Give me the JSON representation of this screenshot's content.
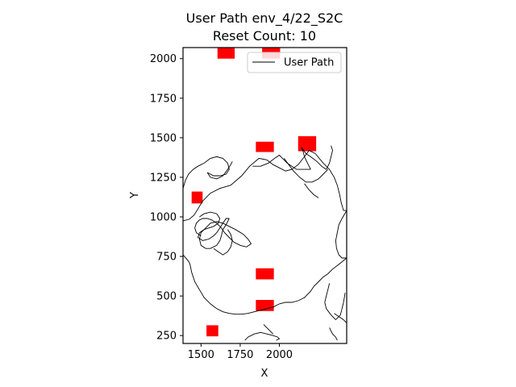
{
  "title": "User Path env_4/22_S2C",
  "subtitle": "Reset Count: 10",
  "chart_data": {
    "type": "line",
    "xlabel": "X",
    "ylabel": "Y",
    "xlim": [
      1385,
      2430
    ],
    "ylim": [
      200,
      2070
    ],
    "xticks": [
      1500,
      1750,
      2000
    ],
    "yticks": [
      250,
      500,
      750,
      1000,
      1250,
      1500,
      1750,
      2000
    ],
    "legend": {
      "position": "top-right",
      "entries": [
        "User Path"
      ]
    },
    "grid": false,
    "series": [
      {
        "name": "User Path",
        "color": "#000000",
        "segments": [
          [
            [
              1385,
              975
            ],
            [
              1425,
              985
            ],
            [
              1455,
              1010
            ],
            [
              1480,
              1050
            ],
            [
              1510,
              1100
            ],
            [
              1560,
              1150
            ],
            [
              1620,
              1180
            ],
            [
              1690,
              1200
            ],
            [
              1760,
              1260
            ],
            [
              1810,
              1320
            ],
            [
              1870,
              1370
            ],
            [
              1920,
              1360
            ],
            [
              1960,
              1330
            ],
            [
              2000,
              1310
            ],
            [
              2040,
              1290
            ],
            [
              2080,
              1300
            ],
            [
              2120,
              1330
            ],
            [
              2160,
              1380
            ],
            [
              2190,
              1420
            ],
            [
              2230,
              1400
            ]
          ],
          [
            [
              2230,
              1400
            ],
            [
              2280,
              1340
            ],
            [
              2320,
              1300
            ],
            [
              2350,
              1250
            ],
            [
              2370,
              1200
            ],
            [
              2385,
              1140
            ],
            [
              2395,
              1090
            ],
            [
              2410,
              1040
            ],
            [
              2430,
              1040
            ]
          ],
          [
            [
              2430,
              1040
            ],
            [
              2400,
              990
            ],
            [
              2380,
              950
            ],
            [
              2370,
              900
            ],
            [
              2360,
              850
            ],
            [
              2365,
              800
            ],
            [
              2380,
              760
            ],
            [
              2400,
              740
            ],
            [
              2430,
              740
            ]
          ],
          [
            [
              2430,
              740
            ],
            [
              2380,
              700
            ],
            [
              2340,
              670
            ],
            [
              2310,
              640
            ],
            [
              2280,
              620
            ],
            [
              2250,
              590
            ],
            [
              2220,
              560
            ],
            [
              2200,
              530
            ],
            [
              2180,
              510
            ],
            [
              2160,
              490
            ],
            [
              2120,
              470
            ],
            [
              2080,
              460
            ],
            [
              2040,
              460
            ],
            [
              2000,
              450
            ],
            [
              1960,
              430
            ],
            [
              1920,
              420
            ],
            [
              1880,
              410
            ],
            [
              1840,
              400
            ],
            [
              1800,
              390
            ],
            [
              1760,
              385
            ],
            [
              1720,
              385
            ],
            [
              1680,
              390
            ]
          ],
          [
            [
              1680,
              390
            ],
            [
              1640,
              400
            ],
            [
              1600,
              420
            ],
            [
              1560,
              450
            ],
            [
              1520,
              490
            ],
            [
              1490,
              540
            ],
            [
              1460,
              590
            ],
            [
              1440,
              650
            ],
            [
              1430,
              700
            ],
            [
              1420,
              720
            ],
            [
              1385,
              760
            ]
          ],
          [
            [
              1385,
              1180
            ],
            [
              1400,
              1230
            ],
            [
              1420,
              1270
            ],
            [
              1450,
              1300
            ],
            [
              1480,
              1320
            ],
            [
              1520,
              1340
            ],
            [
              1560,
              1370
            ],
            [
              1600,
              1380
            ],
            [
              1640,
              1370
            ],
            [
              1670,
              1340
            ],
            [
              1680,
              1300
            ],
            [
              1660,
              1270
            ],
            [
              1620,
              1260
            ],
            [
              1580,
              1260
            ],
            [
              1540,
              1280
            ]
          ],
          [
            [
              1540,
              1280
            ],
            [
              1560,
              1250
            ],
            [
              1600,
              1240
            ],
            [
              1640,
              1260
            ],
            [
              1670,
              1300
            ],
            [
              1690,
              1330
            ],
            [
              1700,
              1350
            ]
          ],
          [
            [
              1490,
              1000
            ],
            [
              1520,
              1020
            ],
            [
              1560,
              1030
            ],
            [
              1600,
              1020
            ],
            [
              1620,
              990
            ],
            [
              1610,
              960
            ],
            [
              1580,
              940
            ],
            [
              1550,
              930
            ],
            [
              1520,
              920
            ],
            [
              1490,
              900
            ],
            [
              1480,
              870
            ],
            [
              1510,
              850
            ],
            [
              1550,
              860
            ],
            [
              1580,
              880
            ],
            [
              1600,
              900
            ],
            [
              1620,
              930
            ],
            [
              1640,
              960
            ],
            [
              1660,
              990
            ],
            [
              1680,
              990
            ]
          ],
          [
            [
              1680,
              990
            ],
            [
              1660,
              950
            ],
            [
              1640,
              920
            ],
            [
              1630,
              880
            ],
            [
              1620,
              850
            ],
            [
              1600,
              820
            ],
            [
              1560,
              800
            ],
            [
              1530,
              800
            ],
            [
              1500,
              820
            ],
            [
              1490,
              860
            ],
            [
              1500,
              900
            ],
            [
              1530,
              930
            ],
            [
              1560,
              960
            ],
            [
              1600,
              970
            ],
            [
              1640,
              960
            ],
            [
              1680,
              940
            ],
            [
              1720,
              920
            ],
            [
              1770,
              890
            ],
            [
              1800,
              860
            ],
            [
              1820,
              830
            ],
            [
              1790,
              810
            ],
            [
              1750,
              820
            ],
            [
              1710,
              840
            ],
            [
              1680,
              870
            ],
            [
              1650,
              900
            ],
            [
              1630,
              930
            ]
          ],
          [
            [
              1630,
              930
            ],
            [
              1600,
              960
            ],
            [
              1570,
              980
            ],
            [
              1540,
              990
            ],
            [
              1510,
              990
            ],
            [
              1490,
              980
            ],
            [
              1470,
              960
            ],
            [
              1460,
              930
            ],
            [
              1470,
              900
            ],
            [
              1500,
              880
            ]
          ],
          [
            [
              1580,
              800
            ],
            [
              1610,
              780
            ],
            [
              1640,
              760
            ],
            [
              1670,
              780
            ],
            [
              1690,
              810
            ],
            [
              1700,
              850
            ],
            [
              1690,
              890
            ],
            [
              1670,
              920
            ]
          ],
          [
            [
              1830,
              1320
            ],
            [
              1880,
              1320
            ],
            [
              1930,
              1340
            ],
            [
              1970,
              1370
            ],
            [
              2000,
              1390
            ],
            [
              2020,
              1370
            ],
            [
              2050,
              1340
            ],
            [
              2080,
              1320
            ],
            [
              2110,
              1300
            ],
            [
              2150,
              1300
            ],
            [
              2200,
              1300
            ]
          ],
          [
            [
              2200,
              1300
            ],
            [
              2180,
              1340
            ],
            [
              2160,
              1380
            ],
            [
              2150,
              1420
            ],
            [
              2140,
              1440
            ],
            [
              2170,
              1400
            ],
            [
              2200,
              1380
            ],
            [
              2240,
              1350
            ],
            [
              2270,
              1320
            ],
            [
              2300,
              1300
            ]
          ],
          [
            [
              2300,
              1300
            ],
            [
              2320,
              1340
            ],
            [
              2330,
              1380
            ],
            [
              2340,
              1420
            ],
            [
              2330,
              1450
            ]
          ],
          [
            [
              2030,
              1370
            ],
            [
              2060,
              1330
            ],
            [
              2090,
              1290
            ],
            [
              2130,
              1250
            ],
            [
              2170,
              1220
            ],
            [
              2210,
              1220
            ],
            [
              2250,
              1240
            ],
            [
              2280,
              1270
            ],
            [
              2310,
              1300
            ]
          ],
          [
            [
              2160,
              1210
            ],
            [
              2190,
              1170
            ],
            [
              2220,
              1140
            ],
            [
              2250,
              1120
            ]
          ],
          [
            [
              2320,
              580
            ],
            [
              2310,
              540
            ],
            [
              2300,
              500
            ],
            [
              2290,
              460
            ],
            [
              2300,
              420
            ],
            [
              2330,
              380
            ],
            [
              2360,
              350
            ]
          ],
          [
            [
              2360,
              350
            ],
            [
              2390,
              380
            ],
            [
              2400,
              420
            ],
            [
              2410,
              460
            ],
            [
              2420,
              520
            ]
          ],
          [
            [
              2350,
              390
            ],
            [
              2380,
              370
            ],
            [
              2410,
              350
            ],
            [
              2430,
              330
            ],
            [
              2430,
              300
            ]
          ],
          [
            [
              2320,
              300
            ],
            [
              2340,
              260
            ],
            [
              2360,
              240
            ],
            [
              2370,
              220
            ]
          ],
          [
            [
              1780,
              220
            ],
            [
              1800,
              240
            ],
            [
              1840,
              260
            ],
            [
              1880,
              270
            ],
            [
              1920,
              260
            ]
          ],
          [
            [
              1920,
              260
            ],
            [
              1960,
              250
            ],
            [
              1990,
              240
            ],
            [
              2000,
              230
            ],
            [
              1980,
              220
            ]
          ],
          [
            [
              1900,
              320
            ],
            [
              1920,
              300
            ],
            [
              1940,
              280
            ],
            [
              1960,
              260
            ]
          ]
        ]
      }
    ],
    "obstacles": [
      {
        "color": "#ff0000",
        "x": [
          1605,
          1715
        ],
        "y": [
          2000,
          2075
        ]
      },
      {
        "color": "#ff0000",
        "x": [
          1890,
          2005
        ],
        "y": [
          2000,
          2075
        ]
      },
      {
        "color": "#ff0000",
        "x": [
          1850,
          1965
        ],
        "y": [
          1410,
          1475
        ]
      },
      {
        "color": "#ff0000",
        "x": [
          2120,
          2235
        ],
        "y": [
          1415,
          1510
        ]
      },
      {
        "color": "#ff0000",
        "x": [
          1440,
          1510
        ],
        "y": [
          1085,
          1160
        ]
      },
      {
        "color": "#ff0000",
        "x": [
          1850,
          1965
        ],
        "y": [
          605,
          675
        ]
      },
      {
        "color": "#ff0000",
        "x": [
          1850,
          1965
        ],
        "y": [
          405,
          475
        ]
      },
      {
        "color": "#ff0000",
        "x": [
          1535,
          1610
        ],
        "y": [
          245,
          315
        ]
      }
    ]
  }
}
